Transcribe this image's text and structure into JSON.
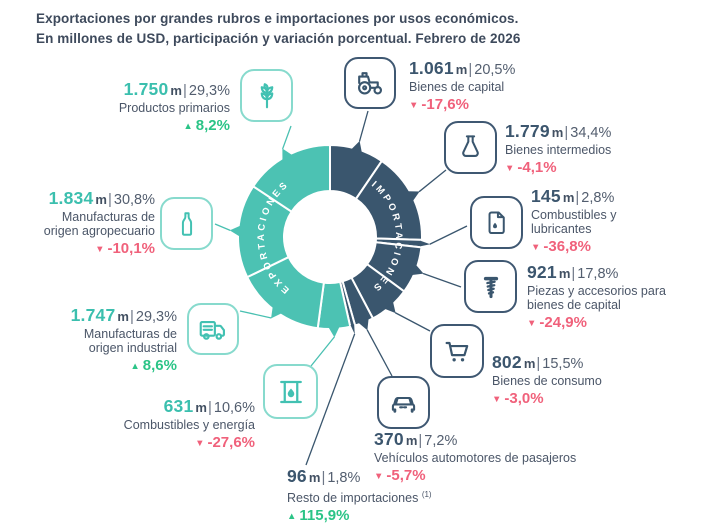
{
  "palette": {
    "teal": "#3dbfae",
    "teal_fill": "#4cc2b3",
    "teal_border": "#87dacd",
    "navy": "#3a566e",
    "navy_border": "#3f5872",
    "green": "#2bc487",
    "pink": "#f0617b",
    "text_dark": "#425062",
    "text_gray": "#535e6f"
  },
  "chart_data": {
    "type": "donut",
    "title": "Exportaciones por grandes rubros e importaciones por usos económicos.",
    "subtitle": "En millones de USD, participación y variación porcentual. Febrero de 2026",
    "unit_label": "m",
    "separator": "|",
    "ring_labels": {
      "exports": "EXPORTACIONES",
      "imports": "IMPORTACIONES"
    },
    "exports": {
      "name": "Exportaciones",
      "color": "#4cc2b3",
      "items": [
        {
          "id": "productos-primarios",
          "value": "1.750",
          "value_num": 1750,
          "share": "29,3%",
          "label1": "Productos primarios",
          "arrow": "▲",
          "change": "8,2%",
          "direction": "up",
          "icon": "wheat-icon"
        },
        {
          "id": "manufacturas-agropecuario",
          "value": "1.834",
          "value_num": 1834,
          "share": "30,8%",
          "label1": "Manufacturas de",
          "label2": "origen agropecuario",
          "arrow": "▼",
          "change": "-10,1%",
          "direction": "down",
          "icon": "bottle-icon"
        },
        {
          "id": "manufacturas-industrial",
          "value": "1.747",
          "value_num": 1747,
          "share": "29,3%",
          "label1": "Manufacturas de",
          "label2": "origen industrial",
          "arrow": "▲",
          "change": "8,6%",
          "direction": "up",
          "icon": "truck-icon"
        },
        {
          "id": "combustibles-energia",
          "value": "631",
          "value_num": 631,
          "share": "10,6%",
          "label1": "Combustibles y energía",
          "arrow": "▼",
          "change": "-27,6%",
          "direction": "down",
          "icon": "oil-barrel-icon"
        }
      ]
    },
    "imports": {
      "name": "Importaciones",
      "color": "#3a566e",
      "items": [
        {
          "id": "bienes-capital",
          "value": "1.061",
          "value_num": 1061,
          "share": "20,5%",
          "label1": "Bienes de capital",
          "arrow": "▼",
          "change": "-17,6%",
          "direction": "down",
          "icon": "tractor-icon"
        },
        {
          "id": "bienes-intermedios",
          "value": "1.779",
          "value_num": 1779,
          "share": "34,4%",
          "label1": "Bienes intermedios",
          "arrow": "▼",
          "change": "-4,1%",
          "direction": "down",
          "icon": "flask-icon"
        },
        {
          "id": "combustibles-lubricantes",
          "value": "145",
          "value_num": 145,
          "share": "2,8%",
          "label1": "Combustibles y",
          "label2": "lubricantes",
          "arrow": "▼",
          "change": "-36,8%",
          "direction": "down",
          "icon": "oil-can-icon"
        },
        {
          "id": "piezas-accesorios",
          "value": "921",
          "value_num": 921,
          "share": "17,8%",
          "label1": "Piezas y accesorios para",
          "label2": "bienes de capital",
          "arrow": "▼",
          "change": "-24,9%",
          "direction": "down",
          "icon": "screw-icon"
        },
        {
          "id": "bienes-consumo",
          "value": "802",
          "value_num": 802,
          "share": "15,5%",
          "label1": "Bienes de consumo",
          "arrow": "▼",
          "change": "-3,0%",
          "direction": "down",
          "icon": "cart-icon"
        },
        {
          "id": "vehiculos",
          "value": "370",
          "value_num": 370,
          "share": "7,2%",
          "label1": "Vehículos automotores de pasajeros",
          "arrow": "▼",
          "change": "-5,7%",
          "direction": "down",
          "icon": "car-icon"
        },
        {
          "id": "resto",
          "value": "96",
          "value_num": 96,
          "share": "1,8%",
          "label1": "Resto de importaciones",
          "footnote_mark": "(1)",
          "arrow": "▲",
          "change": "115,9%",
          "direction": "up",
          "icon": null
        }
      ]
    }
  }
}
